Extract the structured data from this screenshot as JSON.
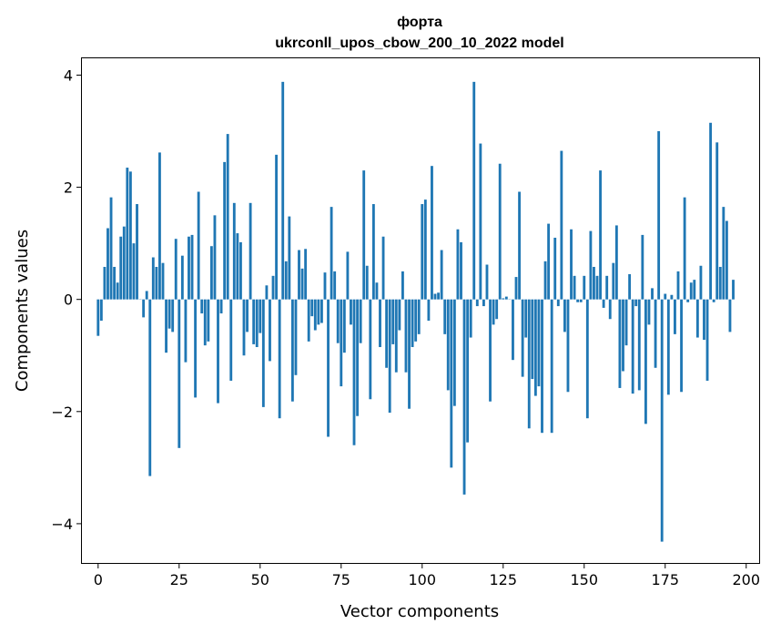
{
  "chart_data": {
    "type": "bar",
    "title_line1": "форта",
    "title_line2": "ukrconll_upos_cbow_200_10_2022 model",
    "xlabel": "Vector components",
    "ylabel": "Components values",
    "xlim": [
      -5,
      204
    ],
    "ylim": [
      -4.7,
      4.3
    ],
    "xticks": [
      0,
      25,
      50,
      75,
      100,
      125,
      150,
      175,
      200
    ],
    "yticks": [
      -4,
      -2,
      0,
      2,
      4
    ],
    "yticklabels": [
      "−4",
      "−2",
      "0",
      "2",
      "4"
    ],
    "bar_color": "#1f77b4",
    "grid": false,
    "values": [
      -0.65,
      -0.38,
      0.58,
      1.27,
      1.82,
      0.58,
      0.3,
      1.12,
      1.3,
      2.35,
      2.28,
      1.0,
      1.7,
      0.0,
      -0.32,
      0.15,
      -3.15,
      0.75,
      0.58,
      2.62,
      0.65,
      -0.95,
      -0.52,
      -0.58,
      1.08,
      -2.65,
      0.78,
      -1.12,
      1.12,
      1.15,
      -1.75,
      1.92,
      -0.25,
      -0.82,
      -0.75,
      0.95,
      1.5,
      -1.85,
      -0.25,
      2.45,
      2.95,
      -1.45,
      1.72,
      1.18,
      1.02,
      -1.0,
      -0.58,
      1.72,
      -0.8,
      -0.85,
      -0.6,
      -1.92,
      0.25,
      -1.1,
      0.42,
      2.58,
      -2.12,
      3.88,
      0.68,
      1.48,
      -1.82,
      -1.35,
      0.88,
      0.55,
      0.9,
      -0.75,
      -0.3,
      -0.55,
      -0.45,
      -0.42,
      0.48,
      -2.45,
      1.65,
      0.5,
      -0.78,
      -1.55,
      -0.95,
      0.85,
      -0.45,
      -2.6,
      -2.08,
      -0.78,
      2.3,
      0.6,
      -1.78,
      1.7,
      0.3,
      -0.85,
      1.12,
      -1.22,
      -2.02,
      -0.8,
      -1.3,
      -0.55,
      0.5,
      -1.3,
      -1.95,
      -0.85,
      -0.75,
      -0.62,
      1.7,
      1.78,
      -0.38,
      2.38,
      0.1,
      0.12,
      0.88,
      -0.62,
      -1.62,
      -3.0,
      -1.9,
      1.25,
      1.02,
      -3.48,
      -2.55,
      -0.68,
      3.88,
      -0.12,
      2.78,
      -0.12,
      0.62,
      -1.82,
      -0.45,
      -0.35,
      2.42,
      0.02,
      0.05,
      0.0,
      -1.08,
      0.4,
      1.92,
      -1.38,
      -0.68,
      -2.3,
      -1.42,
      -1.72,
      -1.55,
      -2.38,
      0.68,
      1.35,
      -2.38,
      1.1,
      -0.12,
      2.65,
      -0.58,
      -1.65,
      1.25,
      0.42,
      -0.05,
      -0.05,
      0.42,
      -2.12,
      1.22,
      0.58,
      0.42,
      2.3,
      -0.15,
      0.42,
      -0.35,
      0.65,
      1.32,
      -1.58,
      -1.28,
      -0.82,
      0.45,
      -1.68,
      -0.12,
      -1.62,
      1.15,
      -2.22,
      -0.45,
      0.2,
      -1.22,
      3.0,
      -4.32,
      0.1,
      -1.7,
      0.08,
      -0.62,
      0.5,
      -1.65,
      1.82,
      -0.05,
      0.3,
      0.35,
      -0.68,
      0.6,
      -0.72,
      -1.45,
      3.15,
      -0.05,
      2.8,
      0.58,
      1.65,
      1.4,
      -0.58,
      0.35
    ]
  }
}
